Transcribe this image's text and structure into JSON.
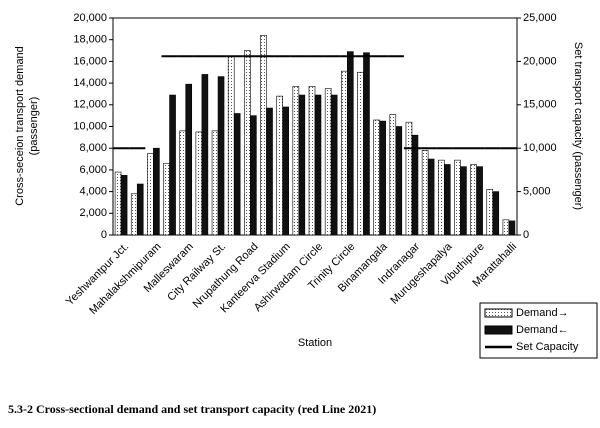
{
  "chart_data": {
    "type": "bar",
    "ylabel": [
      "Cross-seceion transport demand",
      "(passenger)"
    ],
    "y2label": "Set transport capacity (passenger)",
    "xlabel": "Station",
    "caption": "5.3-2 Cross-sectional demand and set transport capacity (red Line 2021)",
    "categories": [
      "Yeshwantpur Jct.",
      null,
      "Mahalakshmipuram",
      null,
      "Malleswaram",
      null,
      "City Railway St.",
      null,
      "Nrupathung Road",
      null,
      "Kanteerva Stadium",
      null,
      "Ashirwadam Circle",
      null,
      "Trinity Circle",
      null,
      "Binamangala",
      null,
      "Indranagar",
      null,
      "Murugeshapalya",
      null,
      "Vibuthipure",
      null,
      "Marattahalli"
    ],
    "series": [
      {
        "name": "Demand→",
        "color": "#e8e8e8",
        "values": [
          5800,
          3800,
          7500,
          6600,
          9600,
          9500,
          9600,
          16500,
          17000,
          18400,
          12800,
          13700,
          13700,
          13500,
          15100,
          15000,
          10600,
          11100,
          10400,
          7800,
          6900,
          6900,
          6500,
          4200,
          1400
        ]
      },
      {
        "name": "Demand←",
        "color": "#111111",
        "values": [
          5500,
          4700,
          8000,
          12900,
          13900,
          14800,
          14600,
          11200,
          11000,
          11700,
          11800,
          12900,
          12900,
          12900,
          16900,
          16800,
          10500,
          10000,
          9200,
          7000,
          6500,
          6300,
          6300,
          4000,
          1300
        ]
      },
      {
        "name": "Set Capacity",
        "color": "#000000",
        "axis": "y2",
        "values": [
          10000,
          10000,
          null,
          20600,
          20600,
          20600,
          20600,
          20600,
          20600,
          20600,
          20600,
          20600,
          20600,
          20600,
          20600,
          20600,
          20600,
          20600,
          10000,
          10000,
          10000,
          10000,
          10000,
          10000,
          10000
        ]
      }
    ],
    "ylim": [
      0,
      20000
    ],
    "yticks": [
      0,
      {
        "value": 2000,
        "label": "2,000"
      },
      {
        "value": 4000,
        "label": "4,000"
      },
      {
        "value": 6000,
        "label": "6,000"
      },
      {
        "value": 8000,
        "label": "8,000"
      },
      {
        "value": 10000,
        "label": "10,000"
      },
      {
        "value": 12000,
        "label": "12,000"
      },
      {
        "value": 14000,
        "label": "14,000"
      },
      {
        "value": 16000,
        "label": "16,000"
      },
      {
        "value": 18000,
        "label": "18,000"
      },
      {
        "value": 20000,
        "label": "20,000"
      }
    ],
    "y2lim": [
      0,
      25000
    ],
    "y2ticks": [
      0,
      {
        "value": 5000,
        "label": "5,000"
      },
      {
        "value": 10000,
        "label": "10,000"
      },
      {
        "value": 15000,
        "label": "15,000"
      },
      {
        "value": 20000,
        "label": "20,000"
      },
      {
        "value": 25000,
        "label": "25,000"
      }
    ]
  }
}
